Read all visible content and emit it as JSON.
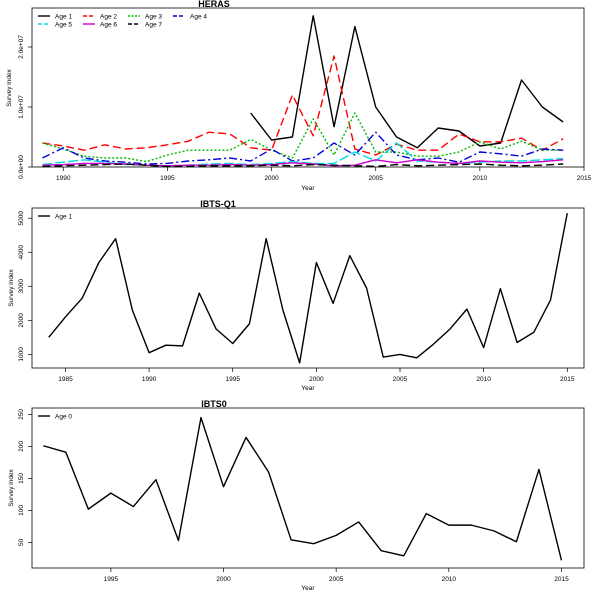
{
  "chart_data": [
    {
      "type": "line",
      "title": "HERAS",
      "xlabel": "Year",
      "ylabel": "Survey index",
      "xlim": [
        1988.5,
        2015
      ],
      "ylim": [
        0,
        26500000
      ],
      "xticks": [
        1990,
        1995,
        2000,
        2005,
        2010,
        2015
      ],
      "xtick_labels": [
        "1990",
        "1995",
        "2000",
        "2005",
        "2010",
        "2015"
      ],
      "yticks": [
        0,
        10000000,
        20000000
      ],
      "ytick_labels": [
        "0.0e+00",
        "1.0e+07",
        "2.0e+07"
      ],
      "grid": false,
      "legend_position": "top-left",
      "legend_columns": 4,
      "series": [
        {
          "name": "Age 1",
          "color": "#000000",
          "dash": "solid",
          "x": [
            1999,
            2000,
            2001,
            2002,
            2003,
            2004,
            2005,
            2006,
            2007,
            2008,
            2009,
            2010,
            2011,
            2012,
            2013,
            2014
          ],
          "y": [
            9000000,
            4500000,
            5000000,
            25200000,
            6700000,
            23400000,
            10000000,
            5000000,
            3200000,
            6500000,
            6000000,
            3500000,
            4000000,
            14500000,
            10000000,
            7500000
          ]
        },
        {
          "name": "Age 2",
          "color": "#ff0000",
          "dash": "8,4",
          "x": [
            1989,
            1990,
            1991,
            1992,
            1993,
            1994,
            1995,
            1996,
            1997,
            1998,
            1999,
            2000,
            2001,
            2002,
            2003,
            2004,
            2005,
            2006,
            2007,
            2008,
            2009,
            2010,
            2011,
            2012,
            2013,
            2014
          ],
          "y": [
            4000000,
            3500000,
            2800000,
            3700000,
            3000000,
            3200000,
            3700000,
            4300000,
            5800000,
            5500000,
            3200000,
            2800000,
            12000000,
            5200000,
            18500000,
            3000000,
            2000000,
            3800000,
            2800000,
            2800000,
            5500000,
            4200000,
            4200000,
            4800000,
            2800000,
            4700000
          ]
        },
        {
          "name": "Age 3",
          "color": "#00bb00",
          "dash": "2,2",
          "x": [
            1989,
            1990,
            1991,
            1992,
            1993,
            1994,
            1995,
            1996,
            1997,
            1998,
            1999,
            2000,
            2001,
            2002,
            2003,
            2004,
            2005,
            2006,
            2007,
            2008,
            2009,
            2010,
            2011,
            2012,
            2013,
            2014
          ],
          "y": [
            4000000,
            3000000,
            1800000,
            1500000,
            1500000,
            900000,
            2000000,
            2800000,
            2800000,
            2800000,
            4600000,
            2800000,
            1500000,
            8000000,
            2000000,
            9000000,
            2500000,
            2500000,
            1800000,
            1800000,
            2500000,
            4200000,
            3000000,
            4300000,
            2800000,
            2800000
          ]
        },
        {
          "name": "Age 4",
          "color": "#0000dd",
          "dash": "8,3,2,3",
          "x": [
            1989,
            1990,
            1991,
            1992,
            1993,
            1994,
            1995,
            1996,
            1997,
            1998,
            1999,
            2000,
            2001,
            2002,
            2003,
            2004,
            2005,
            2006,
            2007,
            2008,
            2009,
            2010,
            2011,
            2012,
            2013,
            2014
          ],
          "y": [
            1500000,
            3200000,
            1500000,
            1000000,
            800000,
            500000,
            600000,
            1000000,
            1200000,
            1500000,
            1000000,
            3000000,
            1000000,
            1500000,
            4000000,
            2000000,
            5800000,
            2000000,
            1200000,
            1500000,
            800000,
            2500000,
            2200000,
            1800000,
            3000000,
            2800000
          ]
        },
        {
          "name": "Age 5",
          "color": "#00dddd",
          "dash": "10,3",
          "x": [
            1989,
            1990,
            1991,
            1992,
            1993,
            1994,
            1995,
            1996,
            1997,
            1998,
            1999,
            2000,
            2001,
            2002,
            2003,
            2004,
            2005,
            2006,
            2007,
            2008,
            2009,
            2010,
            2011,
            2012,
            2013,
            2014
          ],
          "y": [
            400000,
            800000,
            1200000,
            800000,
            400000,
            300000,
            200000,
            300000,
            500000,
            600000,
            400000,
            600000,
            900000,
            600000,
            600000,
            2500000,
            1000000,
            4000000,
            1000000,
            800000,
            600000,
            800000,
            1000000,
            1000000,
            1200000,
            1400000
          ]
        },
        {
          "name": "Age 6",
          "color": "#cc00cc",
          "dash": "solid",
          "x": [
            1989,
            1990,
            1991,
            1992,
            1993,
            1994,
            1995,
            1996,
            1997,
            1998,
            1999,
            2000,
            2001,
            2002,
            2003,
            2004,
            2005,
            2006,
            2007,
            2008,
            2009,
            2010,
            2011,
            2012,
            2013,
            2014
          ],
          "y": [
            300000,
            400000,
            600000,
            600000,
            500000,
            300000,
            200000,
            300000,
            300000,
            400000,
            300000,
            400000,
            700000,
            500000,
            200000,
            300000,
            1200000,
            700000,
            1200000,
            800000,
            600000,
            1000000,
            800000,
            700000,
            900000,
            1200000
          ]
        },
        {
          "name": "Age 7",
          "color": "#000000",
          "dash": "8,4",
          "x": [
            1989,
            1990,
            1991,
            1992,
            1993,
            1994,
            1995,
            1996,
            1997,
            1998,
            1999,
            2000,
            2001,
            2002,
            2003,
            2004,
            2005,
            2006,
            2007,
            2008,
            2009,
            2010,
            2011,
            2012,
            2013,
            2014
          ],
          "y": [
            100000,
            200000,
            300000,
            400000,
            500000,
            300000,
            100000,
            100000,
            200000,
            200000,
            200000,
            300000,
            200000,
            400000,
            300000,
            200000,
            100000,
            400000,
            200000,
            300000,
            400000,
            500000,
            300000,
            200000,
            300000,
            500000
          ]
        }
      ]
    },
    {
      "type": "line",
      "title": "IBTS-Q1",
      "xlabel": "Year",
      "ylabel": "Survey index",
      "xlim": [
        1983,
        2016
      ],
      "ylim": [
        600,
        5300
      ],
      "xticks": [
        1985,
        1990,
        1995,
        2000,
        2005,
        2010,
        2015
      ],
      "xtick_labels": [
        "1985",
        "1990",
        "1995",
        "2000",
        "2005",
        "2010",
        "2015"
      ],
      "yticks": [
        1000,
        2000,
        3000,
        4000,
        5000
      ],
      "ytick_labels": [
        "1000",
        "2000",
        "3000",
        "4000",
        "5000"
      ],
      "grid": false,
      "legend_position": "top-left",
      "series": [
        {
          "name": "Age 1",
          "color": "#000000",
          "dash": "solid",
          "x": [
            1984,
            1985,
            1986,
            1987,
            1988,
            1989,
            1990,
            1991,
            1992,
            1993,
            1994,
            1995,
            1996,
            1997,
            1998,
            1999,
            2000,
            2001,
            2002,
            2003,
            2004,
            2005,
            2006,
            2007,
            2008,
            2009,
            2010,
            2011,
            2012,
            2013,
            2014,
            2015
          ],
          "y": [
            1500,
            2100,
            2650,
            3700,
            4400,
            2300,
            1050,
            1270,
            1250,
            2800,
            1750,
            1320,
            1900,
            4400,
            2300,
            750,
            3700,
            2500,
            3900,
            2950,
            920,
            1000,
            900,
            1300,
            1750,
            2330,
            1200,
            2930,
            1350,
            1650,
            2600,
            5150
          ]
        }
      ]
    },
    {
      "type": "line",
      "title": "IBTS0",
      "xlabel": "Year",
      "ylabel": "Survey index",
      "xlim": [
        1991.5,
        2016
      ],
      "ylim": [
        10,
        260
      ],
      "xticks": [
        1995,
        2000,
        2005,
        2010,
        2015
      ],
      "xtick_labels": [
        "1995",
        "2000",
        "2005",
        "2010",
        "2015"
      ],
      "yticks": [
        50,
        100,
        150,
        200,
        250
      ],
      "ytick_labels": [
        "50",
        "100",
        "150",
        "200",
        "250"
      ],
      "grid": false,
      "legend_position": "top-left",
      "series": [
        {
          "name": "Age 0",
          "color": "#000000",
          "dash": "solid",
          "x": [
            1992,
            1993,
            1994,
            1995,
            1996,
            1997,
            1998,
            1999,
            2000,
            2001,
            2002,
            2003,
            2004,
            2005,
            2006,
            2007,
            2008,
            2009,
            2010,
            2011,
            2012,
            2013,
            2014,
            2015
          ],
          "y": [
            201,
            191,
            102,
            127,
            106,
            148,
            53,
            245,
            137,
            214,
            160,
            54,
            48,
            61,
            82,
            37,
            29,
            95,
            77,
            77,
            68,
            51,
            164,
            22
          ]
        }
      ]
    }
  ]
}
